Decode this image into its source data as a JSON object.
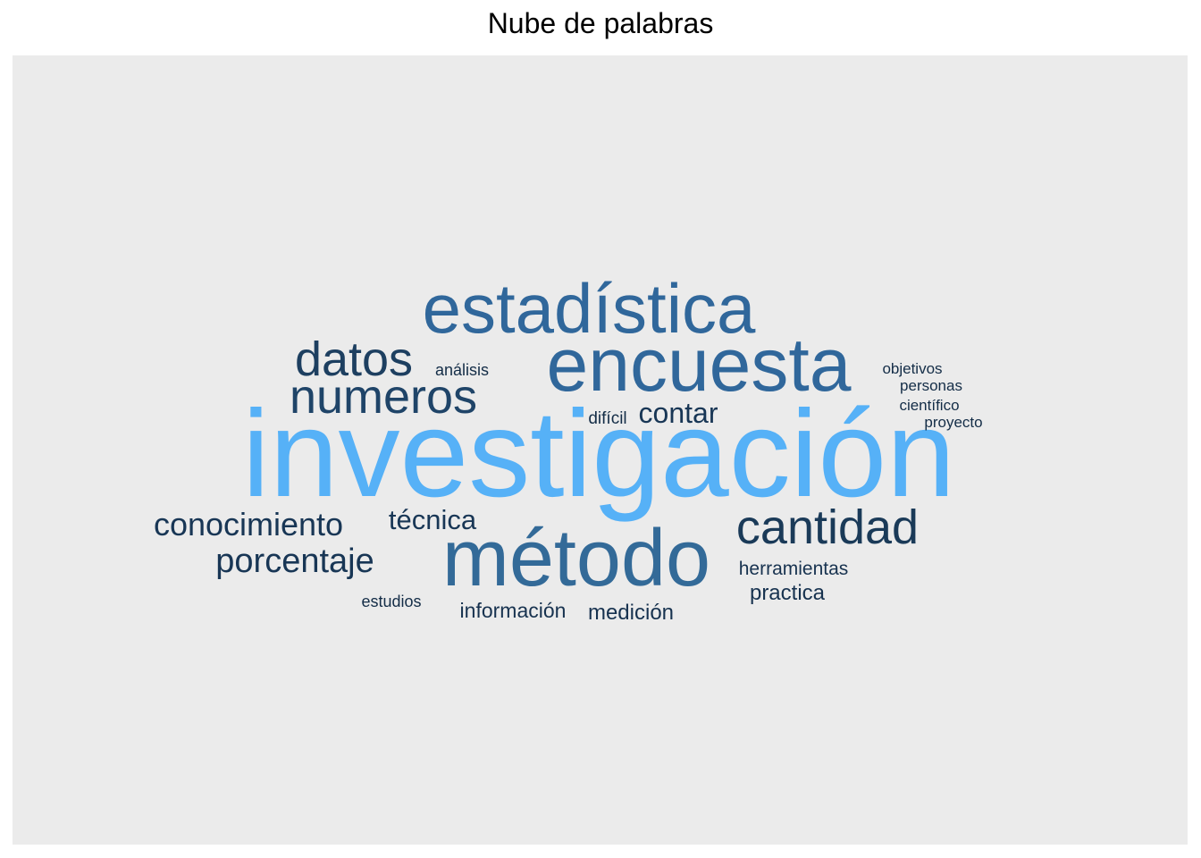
{
  "chart_data": {
    "type": "wordcloud",
    "title": "Nube de palabras",
    "panel_background": "#ebebeb",
    "color_scale": {
      "low": "#132b43",
      "high": "#56b1f7"
    },
    "words": [
      {
        "text": "investigación",
        "freq": 100,
        "color": "#56b1f7"
      },
      {
        "text": "método",
        "freq": 45,
        "color": "#336a98"
      },
      {
        "text": "encuesta",
        "freq": 42,
        "color": "#30679b"
      },
      {
        "text": "estadística",
        "freq": 40,
        "color": "#30679b"
      },
      {
        "text": "numeros",
        "freq": 30,
        "color": "#1f4468"
      },
      {
        "text": "datos",
        "freq": 28,
        "color": "#1d3f60"
      },
      {
        "text": "cantidad",
        "freq": 28,
        "color": "#1a3a58"
      },
      {
        "text": "conocimiento",
        "freq": 18,
        "color": "#183655"
      },
      {
        "text": "porcentaje",
        "freq": 18,
        "color": "#183655"
      },
      {
        "text": "técnica",
        "freq": 15,
        "color": "#183655"
      },
      {
        "text": "contar",
        "freq": 15,
        "color": "#183655"
      },
      {
        "text": "herramientas",
        "freq": 10,
        "color": "#17324f"
      },
      {
        "text": "practica",
        "freq": 11,
        "color": "#17324f"
      },
      {
        "text": "información",
        "freq": 11,
        "color": "#17324f"
      },
      {
        "text": "medición",
        "freq": 11,
        "color": "#17324f"
      },
      {
        "text": "estudios",
        "freq": 8,
        "color": "#142d47"
      },
      {
        "text": "análisis",
        "freq": 8,
        "color": "#142d47"
      },
      {
        "text": "difícil",
        "freq": 8,
        "color": "#142d47"
      },
      {
        "text": "objetivos",
        "freq": 8,
        "color": "#142d47"
      },
      {
        "text": "personas",
        "freq": 8,
        "color": "#142d47"
      },
      {
        "text": "científico",
        "freq": 8,
        "color": "#142d47"
      },
      {
        "text": "proyecto",
        "freq": 8,
        "color": "#142d47"
      }
    ]
  }
}
